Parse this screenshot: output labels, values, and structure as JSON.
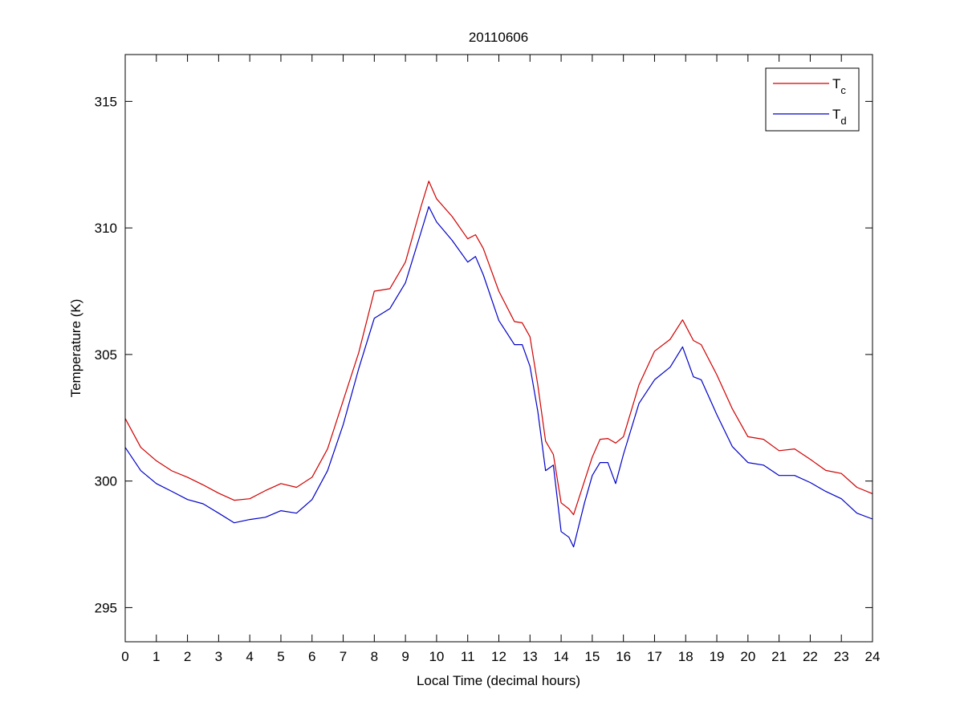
{
  "chart_data": {
    "type": "line",
    "title": "20110606",
    "xlabel": "Local Time (decimal hours)",
    "ylabel": "Temperature (K)",
    "xlim": [
      0,
      24
    ],
    "ylim": [
      293.65,
      316.85
    ],
    "xticks": [
      0,
      1,
      2,
      3,
      4,
      5,
      6,
      7,
      8,
      9,
      10,
      11,
      12,
      13,
      14,
      15,
      16,
      17,
      18,
      19,
      20,
      21,
      22,
      23,
      24
    ],
    "yticks": [
      295,
      300,
      305,
      310,
      315
    ],
    "grid": false,
    "legend_position": "top-right",
    "x": [
      0,
      0.5,
      1,
      1.5,
      2,
      2.5,
      3,
      3.5,
      4,
      4.5,
      5,
      5.5,
      6,
      6.5,
      7,
      7.5,
      8,
      8.5,
      9,
      9.5,
      9.75,
      10,
      10.5,
      11,
      11.25,
      11.5,
      12,
      12.5,
      12.75,
      13,
      13.25,
      13.5,
      13.75,
      14,
      14.25,
      14.4,
      14.75,
      15,
      15.25,
      15.5,
      15.75,
      16,
      16.5,
      17,
      17.5,
      17.9,
      18.25,
      18.5,
      19,
      19.5,
      20,
      20.5,
      21,
      21.5,
      22,
      22.5,
      23,
      23.5,
      24
    ],
    "series": [
      {
        "name": "T",
        "subscript": "c",
        "color": "#d00000",
        "values": [
          302.47,
          301.33,
          300.8,
          300.4,
          300.15,
          299.85,
          299.52,
          299.24,
          299.3,
          299.62,
          299.9,
          299.75,
          300.15,
          301.27,
          303.17,
          305.07,
          307.5,
          307.6,
          308.65,
          310.84,
          311.85,
          311.15,
          310.45,
          309.57,
          309.73,
          309.19,
          307.5,
          306.3,
          306.25,
          305.7,
          303.8,
          301.58,
          301.05,
          299.14,
          298.9,
          298.67,
          300.0,
          300.95,
          301.65,
          301.68,
          301.5,
          301.75,
          303.8,
          305.13,
          305.6,
          306.37,
          305.55,
          305.39,
          304.2,
          302.85,
          301.75,
          301.65,
          301.2,
          301.27,
          300.86,
          300.42,
          300.3,
          299.75,
          299.5
        ]
      },
      {
        "name": "T",
        "subscript": "d",
        "color": "#0000c8",
        "values": [
          301.33,
          300.41,
          299.9,
          299.59,
          299.27,
          299.1,
          298.73,
          298.35,
          298.48,
          298.57,
          298.83,
          298.73,
          299.27,
          300.41,
          302.22,
          304.44,
          306.43,
          306.81,
          307.83,
          309.83,
          310.84,
          310.24,
          309.51,
          308.65,
          308.87,
          308.15,
          306.34,
          305.39,
          305.39,
          304.53,
          302.76,
          300.41,
          300.63,
          298.0,
          297.78,
          297.4,
          299.14,
          300.22,
          300.73,
          300.73,
          299.9,
          301.05,
          303.07,
          304.0,
          304.5,
          305.3,
          304.12,
          304.0,
          302.63,
          301.36,
          300.73,
          300.63,
          300.22,
          300.22,
          299.94,
          299.59,
          299.3,
          298.73,
          298.5
        ]
      }
    ]
  }
}
